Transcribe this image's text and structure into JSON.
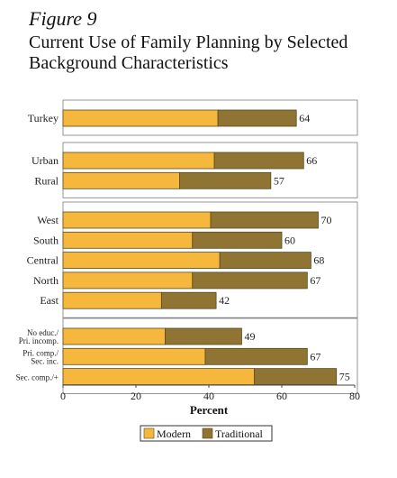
{
  "figure": {
    "label": "Figure 9",
    "title": "Current Use of Family Planning by Selected Background Characteristics"
  },
  "colors": {
    "modern": "#f6b83c",
    "traditional": "#8f7434",
    "bar_outline": "#5a4a20",
    "panel_outline": "#7a7a7a"
  },
  "chart_data": {
    "type": "bar",
    "orientation": "horizontal",
    "stacked": true,
    "xlabel": "Percent",
    "ylabel": "",
    "xlim": [
      0,
      80
    ],
    "xticks": [
      0,
      20,
      40,
      60,
      80
    ],
    "grid": false,
    "legend_position": "bottom",
    "series": [
      {
        "name": "Modern",
        "color": "#f6b83c"
      },
      {
        "name": "Traditional",
        "color": "#8f7434"
      }
    ],
    "groups": [
      {
        "items": [
          {
            "label": "Turkey",
            "modern": 42.5,
            "traditional": 21.5,
            "total": "64"
          }
        ]
      },
      {
        "items": [
          {
            "label": "Urban",
            "modern": 41.5,
            "traditional": 24.5,
            "total": "66"
          },
          {
            "label": "Rural",
            "modern": 32,
            "traditional": 25,
            "total": "57"
          }
        ]
      },
      {
        "items": [
          {
            "label": "West",
            "modern": 40.5,
            "traditional": 29.5,
            "total": "70"
          },
          {
            "label": "South",
            "modern": 35.5,
            "traditional": 24.5,
            "total": "60"
          },
          {
            "label": "Central",
            "modern": 43,
            "traditional": 25,
            "total": "68"
          },
          {
            "label": "North",
            "modern": 35.5,
            "traditional": 31.5,
            "total": "67"
          },
          {
            "label": "East",
            "modern": 27,
            "traditional": 15,
            "total": "42"
          }
        ]
      },
      {
        "items": [
          {
            "label": "No educ./ Pri. incomp.",
            "label_lines": [
              "No educ./",
              "Pri. incomp."
            ],
            "modern": 28,
            "traditional": 21,
            "total": "49"
          },
          {
            "label": "Pri. comp./ Sec. inc.",
            "label_lines": [
              "Pri. comp./",
              "Sec. inc."
            ],
            "modern": 39,
            "traditional": 28,
            "total": "67"
          },
          {
            "label": "Sec. comp./+",
            "modern": 52.5,
            "traditional": 22.5,
            "total": "75"
          }
        ]
      }
    ]
  }
}
